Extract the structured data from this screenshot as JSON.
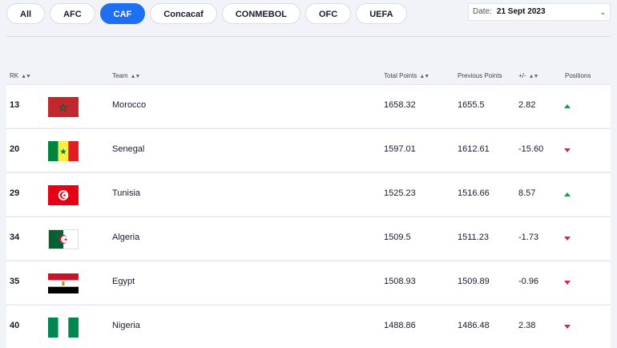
{
  "tabs": [
    {
      "label": "All",
      "active": false
    },
    {
      "label": "AFC",
      "active": false
    },
    {
      "label": "CAF",
      "active": true
    },
    {
      "label": "Concacaf",
      "active": false
    },
    {
      "label": "CONMEBOL",
      "active": false
    },
    {
      "label": "OFC",
      "active": false
    },
    {
      "label": "UEFA",
      "active": false
    }
  ],
  "date_filter": {
    "label": "Date:",
    "value": "21 Sept 2023",
    "icon": "chevron-down-icon"
  },
  "columns": {
    "rank": "RK",
    "team": "Team",
    "total_points": "Total Points",
    "previous_points": "Previous Points",
    "change": "+/-",
    "positions": "Positions"
  },
  "rows": [
    {
      "rank": "13",
      "team": "Morocco",
      "flag": "morocco",
      "total_points": "1658.32",
      "previous_points": "1655.5",
      "change": "2.82",
      "trend": "up"
    },
    {
      "rank": "20",
      "team": "Senegal",
      "flag": "senegal",
      "total_points": "1597.01",
      "previous_points": "1612.61",
      "change": "-15.60",
      "trend": "down"
    },
    {
      "rank": "29",
      "team": "Tunisia",
      "flag": "tunisia",
      "total_points": "1525.23",
      "previous_points": "1516.66",
      "change": "8.57",
      "trend": "up"
    },
    {
      "rank": "34",
      "team": "Algeria",
      "flag": "algeria",
      "total_points": "1509.5",
      "previous_points": "1511.23",
      "change": "-1.73",
      "trend": "down"
    },
    {
      "rank": "35",
      "team": "Egypt",
      "flag": "egypt",
      "total_points": "1508.93",
      "previous_points": "1509.89",
      "change": "-0.96",
      "trend": "down"
    },
    {
      "rank": "40",
      "team": "Nigeria",
      "flag": "nigeria",
      "total_points": "1488.86",
      "previous_points": "1486.48",
      "change": "2.38",
      "trend": "down"
    }
  ],
  "colors": {
    "accent": "#1e6ff1",
    "up": "#1a9a44",
    "down": "#d9263a"
  }
}
